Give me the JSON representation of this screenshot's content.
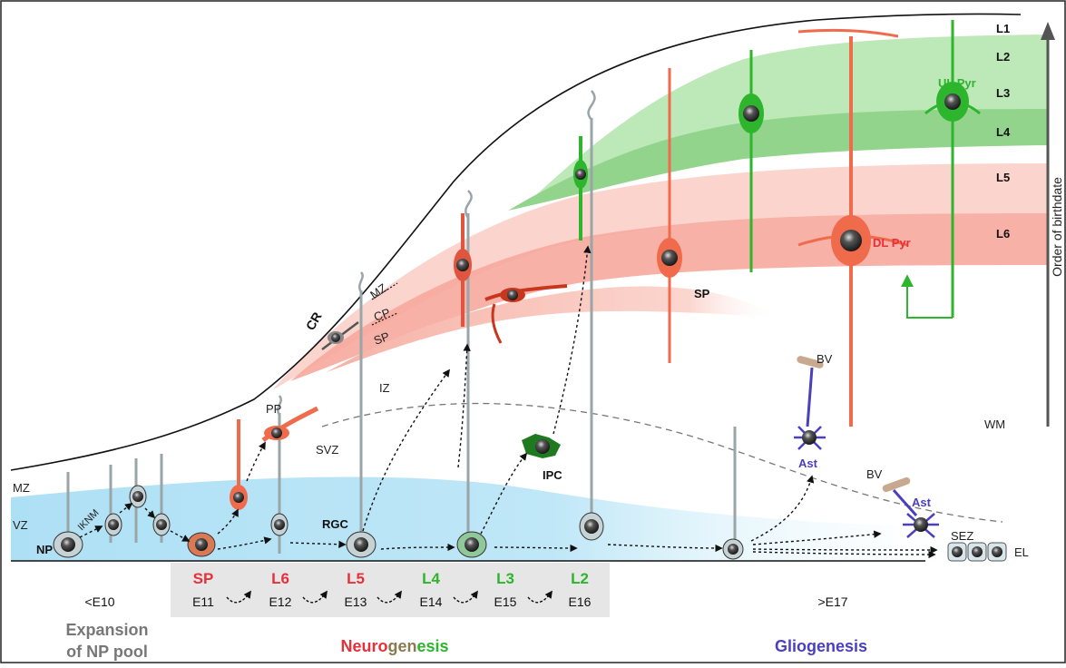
{
  "layers": [
    "L1",
    "L2",
    "L3",
    "L4",
    "L5",
    "L6"
  ],
  "axis_label": "Order of birthdate",
  "zones": {
    "mz_left": "MZ",
    "vz": "VZ",
    "np": "NP",
    "iknm": "IKNM",
    "pp": "PP",
    "svz": "SVZ",
    "iz": "IZ",
    "cr": "CR",
    "mz_mid": "MZ",
    "cp": "CP",
    "sp_mid": "SP",
    "sp_right": "SP",
    "rgc": "RGC",
    "ipc": "IPC",
    "wm": "WM",
    "bv1": "BV",
    "bv2": "BV",
    "ast1": "Ast",
    "ast2": "Ast",
    "sez": "SEZ",
    "el": "EL"
  },
  "neurons": {
    "ul_pyr": "UL Pyr",
    "dl_pyr": "DL Pyr"
  },
  "timeline": [
    {
      "fate": "SP",
      "age": "E11",
      "color": "#e8303a"
    },
    {
      "fate": "L6",
      "age": "E12",
      "color": "#e8303a"
    },
    {
      "fate": "L5",
      "age": "E13",
      "color": "#e8303a"
    },
    {
      "fate": "L4",
      "age": "E14",
      "color": "#2db52d"
    },
    {
      "fate": "L3",
      "age": "E15",
      "color": "#2db52d"
    },
    {
      "fate": "L2",
      "age": "E16",
      "color": "#2db52d"
    }
  ],
  "early_age": "<E10",
  "late_age": ">E17",
  "phases": {
    "expansion_line1": "Expansion",
    "expansion_line2": "of NP pool",
    "neuro_part1": "Neuro",
    "neuro_part2": "gen",
    "neuro_part3": "esis",
    "glio": "Gliogenesis"
  },
  "colors": {
    "red": "#e8303a",
    "green": "#2db52d",
    "purple": "#4a3fbf",
    "gray_text": "#777777",
    "vz_blue": "#b8e3f5",
    "dl_band": "#f4a093",
    "ul_band": "#8fd68a"
  }
}
